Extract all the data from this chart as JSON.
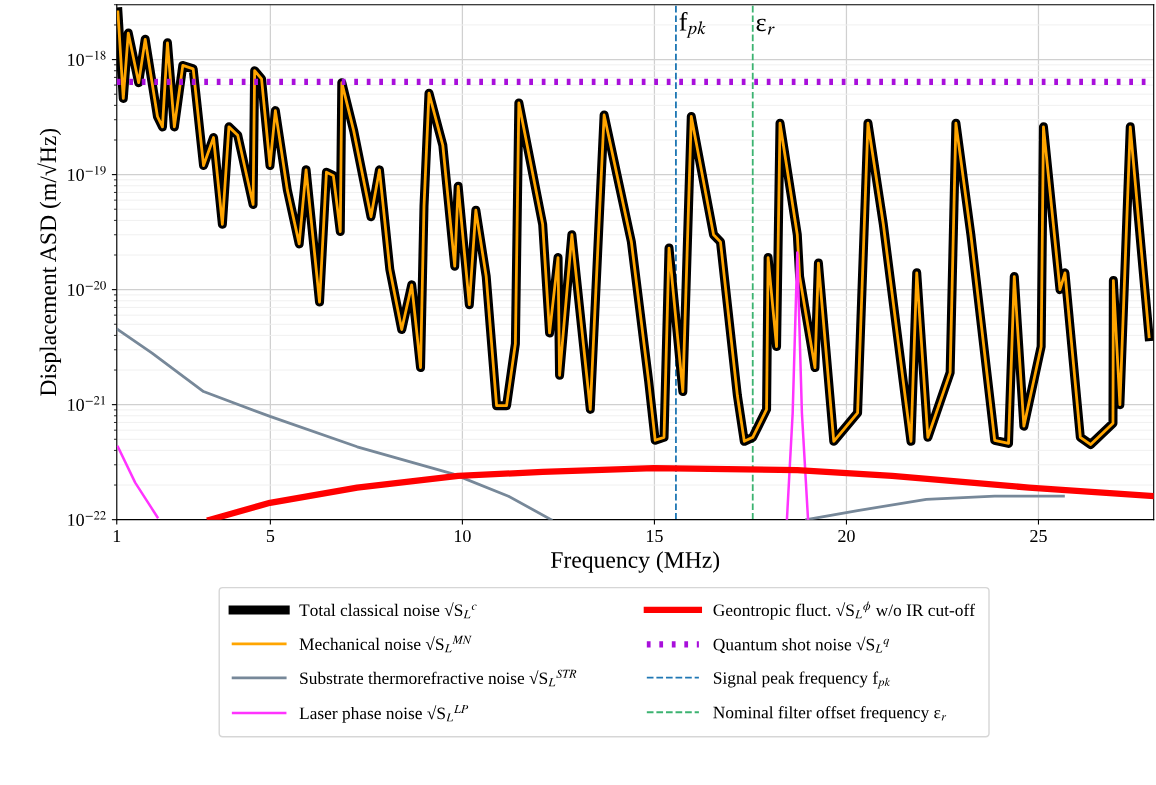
{
  "chart_data": {
    "type": "line",
    "xlabel": "Frequency (MHz)",
    "ylabel": "Displacement ASD (m/√Hz)",
    "log": "y",
    "xlim": [
      1,
      28
    ],
    "ylim": [
      1e-22,
      3e-18
    ],
    "xticks": [
      1,
      5,
      10,
      15,
      20,
      25
    ],
    "yticks": [
      {
        "value": 1e-22,
        "label": "10$^{−22}$"
      },
      {
        "value": 1e-21,
        "label": "10$^{−21}$"
      },
      {
        "value": 1e-20,
        "label": "10$^{−20}$"
      },
      {
        "value": 1e-19,
        "label": "10$^{−19}$"
      },
      {
        "value": 1e-18,
        "label": "10$^{−18}$"
      }
    ],
    "grid": true,
    "legend": "bottom",
    "marker": "none",
    "x": [
      1.03,
      1.17,
      1.3,
      1.57,
      1.74,
      2.06,
      2.19,
      2.32,
      2.5,
      2.72,
      2.99,
      3.26,
      3.52,
      3.75,
      3.92,
      4.15,
      4.55,
      4.59,
      4.77,
      4.99,
      5.13,
      5.44,
      5.75,
      5.93,
      6.28,
      6.46,
      6.64,
      6.82,
      6.86,
      7.17,
      7.62,
      7.84,
      8.11,
      8.42,
      8.68,
      8.91,
      9.0,
      9.13,
      9.49,
      9.8,
      9.89,
      10.18,
      10.35,
      10.62,
      10.89,
      11.15,
      11.38,
      11.47,
      12.09,
      12.27,
      12.49,
      12.53,
      12.85,
      13.33,
      13.69,
      14.4,
      14.85,
      15.02,
      15.25,
      15.38,
      15.74,
      15.96,
      16.54,
      16.72,
      17.16,
      17.34,
      17.56,
      17.92,
      17.96,
      18.18,
      18.27,
      18.72,
      18.78,
      19.18,
      19.27,
      19.67,
      20.29,
      20.56,
      20.96,
      21.54,
      21.68,
      21.83,
      22.12,
      22.7,
      22.85,
      23.24,
      23.86,
      24.22,
      24.37,
      24.62,
      25.07,
      25.13,
      25.56,
      25.69,
      26.09,
      26.36,
      26.94,
      26.95,
      27.12,
      27.39,
      27.88
    ],
    "series": [
      {
        "name": "Total classical noise √S$_{L}$$^{c}$",
        "color": "#000000",
        "line_style": "solid",
        "values": [
          2.6e-18,
          4.6e-19,
          1.7e-18,
          6.3e-19,
          1.5e-18,
          3.2e-19,
          2.6e-19,
          1.4e-18,
          2.6e-19,
          8.9e-19,
          8.3e-19,
          1.2e-19,
          2.1e-19,
          3.7e-20,
          2.6e-19,
          2.2e-19,
          5.5e-20,
          8e-19,
          6.8e-19,
          1.2e-19,
          3.6e-19,
          7.4e-20,
          2.5e-20,
          1.1e-19,
          7.8e-21,
          1.05e-19,
          9.8e-20,
          3.2e-20,
          6.3e-19,
          2.4e-19,
          4.3e-20,
          1.1e-19,
          1.5e-20,
          4.5e-21,
          1.1e-20,
          2.1e-21,
          5.3e-20,
          5.1e-19,
          1.8e-19,
          1.6e-20,
          7.9e-20,
          7.4e-21,
          4.9e-20,
          1.3e-20,
          9.8e-22,
          9.8e-22,
          3.4e-21,
          4.2e-19,
          3.7e-20,
          4.2e-21,
          1.9e-20,
          1.8e-21,
          3e-20,
          9.1e-22,
          3.3e-19,
          2.6e-20,
          1.6e-21,
          4.9e-22,
          5.2e-22,
          2.3e-20,
          1.3e-21,
          3.2e-19,
          3e-20,
          2.6e-20,
          1.2e-21,
          4.8e-22,
          5.2e-22,
          9.1e-22,
          1.9e-20,
          3.2e-21,
          2.8e-19,
          3e-20,
          1.3e-20,
          2.1e-21,
          1.7e-20,
          4.8e-22,
          8.5e-22,
          2.8e-19,
          3.7e-20,
          1.1e-21,
          4.8e-22,
          1.4e-20,
          5.2e-22,
          1.9e-21,
          2.8e-19,
          3e-20,
          4.9e-22,
          4.6e-22,
          1.3e-20,
          6.5e-22,
          3.2e-21,
          2.6e-19,
          1e-20,
          1.4e-20,
          5.2e-22,
          4.5e-22,
          6.9e-22,
          1.2e-20,
          1e-21,
          2.6e-19,
          3.9e-21
        ]
      },
      {
        "name": "Mechanical noise √S$_{L}$$^{MN}$",
        "color": "#ffa500",
        "line_style": "solid",
        "values": [
          2.6e-18,
          4.6e-19,
          1.7e-18,
          6.3e-19,
          1.5e-18,
          3.2e-19,
          2.6e-19,
          1.4e-18,
          2.6e-19,
          8.9e-19,
          8.3e-19,
          1.2e-19,
          2.1e-19,
          3.7e-20,
          2.6e-19,
          2.2e-19,
          5.5e-20,
          8e-19,
          6.8e-19,
          1.2e-19,
          3.6e-19,
          7.4e-20,
          2.5e-20,
          1.1e-19,
          7.8e-21,
          1.05e-19,
          9.8e-20,
          3.2e-20,
          6.3e-19,
          2.4e-19,
          4.3e-20,
          1.1e-19,
          1.5e-20,
          4.5e-21,
          1.1e-20,
          2.1e-21,
          5.3e-20,
          5.1e-19,
          1.8e-19,
          1.6e-20,
          7.9e-20,
          7.4e-21,
          4.9e-20,
          1.3e-20,
          9.8e-22,
          9.8e-22,
          3.4e-21,
          4.2e-19,
          3.7e-20,
          4.2e-21,
          1.9e-20,
          1.8e-21,
          3e-20,
          9.1e-22,
          3.3e-19,
          2.6e-20,
          1.6e-21,
          4.9e-22,
          5.2e-22,
          2.3e-20,
          1.3e-21,
          3.2e-19,
          3e-20,
          2.6e-20,
          1.2e-21,
          4.8e-22,
          5.2e-22,
          9.1e-22,
          1.9e-20,
          3.2e-21,
          2.8e-19,
          3e-20,
          1.3e-20,
          2.1e-21,
          1.7e-20,
          4.8e-22,
          8.5e-22,
          2.8e-19,
          3.7e-20,
          1.1e-21,
          4.8e-22,
          1.4e-20,
          5.2e-22,
          1.9e-21,
          2.8e-19,
          3e-20,
          4.9e-22,
          4.6e-22,
          1.3e-20,
          6.5e-22,
          3.2e-21,
          2.6e-19,
          1e-20,
          1.4e-20,
          5.2e-22,
          4.5e-22,
          6.9e-22,
          1.2e-20,
          1e-21,
          2.6e-19,
          3.9e-21
        ]
      },
      {
        "name": "Substrate thermorefractive noise √S$_{L}$$^{STR}$",
        "color": "#778899",
        "line_style": "solid",
        "x": [
          1.03,
          1.92,
          3.26,
          4.99,
          7.26,
          9.75,
          11.2,
          12.31,
          15.6,
          18.96,
          20.29,
          22.08,
          23.86,
          25.65
        ],
        "values": [
          4.5e-21,
          2.8e-21,
          1.3e-21,
          7.9e-22,
          4.3e-22,
          2.5e-22,
          1.6e-22,
          1e-22,
          null,
          1e-22,
          1.2e-22,
          1.5e-22,
          1.6e-22,
          1.6e-22
        ]
      },
      {
        "name": "Laser phase noise √S$_{L}$$^{LP}$",
        "color": "#ff33ff",
        "line_style": "solid",
        "x": [
          1.03,
          1.48,
          2.06,
          10,
          18.45,
          18.6,
          18.72,
          18.84,
          19.0
        ],
        "values": [
          4.3e-22,
          2.1e-22,
          1.05e-22,
          null,
          1e-22,
          8.5e-22,
          2.1e-20,
          8.5e-22,
          1e-22
        ]
      },
      {
        "name": "Geontropic fluct. √S$_{L}$$^{ϕ}$ w/o IR cut-off",
        "color": "#ff0000",
        "line_style": "solid",
        "x": [
          3.43,
          4.99,
          7.26,
          9.89,
          12.09,
          14.98,
          18.72,
          21.19,
          24.75,
          28
        ],
        "values": [
          1e-22,
          1.4e-22,
          1.9e-22,
          2.4e-22,
          2.6e-22,
          2.8e-22,
          2.7e-22,
          2.4e-22,
          1.9e-22,
          1.6e-22
        ]
      },
      {
        "name": "Quantum shot noise √S$_{L}$$^{q}$",
        "color": "#a80fdb",
        "line_style": "dotted",
        "x": [
          1,
          28
        ],
        "values": [
          6.4e-19,
          6.4e-19
        ]
      }
    ],
    "ref_lines": [
      {
        "axis": "x",
        "value": 15.56,
        "label": "Signal peak frequency f$_{pk}$",
        "color": "#1f77b4",
        "line_style": "dashed"
      },
      {
        "axis": "x",
        "value": 17.56,
        "label": "Nominal filter offset frequency ε$_{r}$",
        "color": "#3cb371",
        "line_style": "dashed"
      }
    ],
    "annotations": [
      {
        "text": "f$_{pk}$",
        "x": 15.56,
        "y": 2e-18
      },
      {
        "text": "ε$_{r}$",
        "x": 17.56,
        "y": 2e-18
      }
    ]
  }
}
